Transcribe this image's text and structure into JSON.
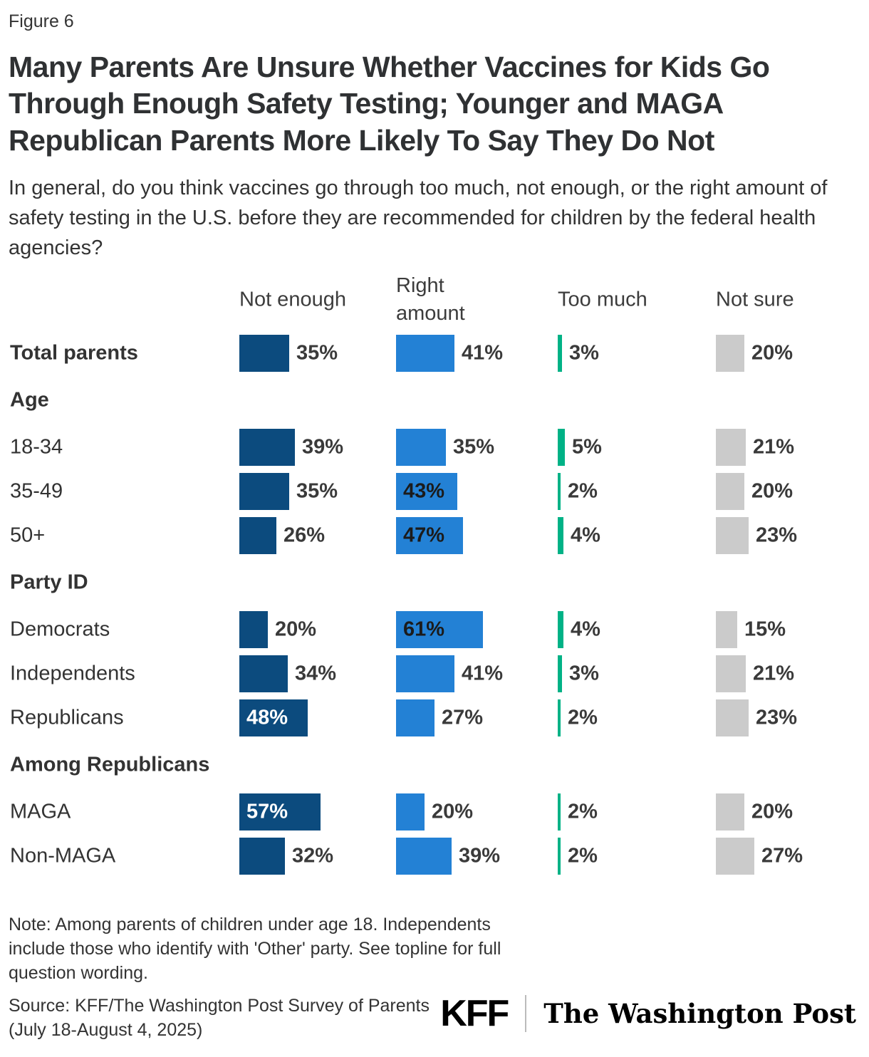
{
  "figure_label": "Figure 6",
  "title": "Many Parents Are Unsure Whether Vaccines for Kids Go Through Enough Safety Testing; Younger and MAGA Republican Parents More Likely To Say They Do Not",
  "subtitle": "In general, do you think vaccines go through too much, not enough, or the right amount of safety testing in the U.S. before they are recommended for children by the federal health agencies?",
  "chart_data": {
    "type": "bar",
    "orientation": "horizontal",
    "value_unit": "%",
    "value_range": [
      0,
      100
    ],
    "grid": false,
    "legend_position": "column-headers-top",
    "columns": [
      {
        "name": "Not enough",
        "color": "#0C4B7E"
      },
      {
        "name": "Right amount",
        "color": "#2381D5"
      },
      {
        "name": "Too much",
        "color": "#00B286"
      },
      {
        "name": "Not sure",
        "color": "#CBCBCB"
      }
    ],
    "rows": [
      {
        "label": "Total parents",
        "style": "bold",
        "values": [
          35,
          41,
          3,
          20
        ]
      },
      {
        "label": "Age",
        "style": "section"
      },
      {
        "label": "18-34",
        "values": [
          39,
          35,
          5,
          21
        ]
      },
      {
        "label": "35-49",
        "values": [
          35,
          43,
          2,
          20
        ]
      },
      {
        "label": "50+",
        "values": [
          26,
          47,
          4,
          23
        ]
      },
      {
        "label": "Party ID",
        "style": "section"
      },
      {
        "label": "Democrats",
        "values": [
          20,
          61,
          4,
          15
        ]
      },
      {
        "label": "Independents",
        "values": [
          34,
          41,
          3,
          21
        ]
      },
      {
        "label": "Republicans",
        "values": [
          48,
          27,
          2,
          23
        ]
      },
      {
        "label": "Among Republicans",
        "style": "section"
      },
      {
        "label": "MAGA",
        "values": [
          57,
          20,
          2,
          20
        ]
      },
      {
        "label": "Non-MAGA",
        "values": [
          32,
          39,
          2,
          27
        ]
      }
    ]
  },
  "note": "Note: Among parents of children under age 18. Independents include those who identify with 'Other' party. See topline for full question wording.",
  "source": "Source: KFF/The Washington Post Survey of Parents (July 18-August 4, 2025)",
  "logos": {
    "kff": "KFF",
    "washington_post": "The Washington Post"
  }
}
